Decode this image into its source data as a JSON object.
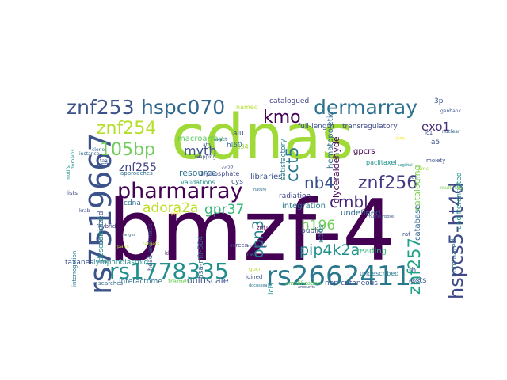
{
  "words": [
    {
      "text": "bmzf-4",
      "color": "#440154"
    },
    {
      "text": "cdnas",
      "color": "#a0da39"
    },
    {
      "text": "rs7519667",
      "color": "#3b528b"
    },
    {
      "text": "rs2662411",
      "color": "#2a788e"
    },
    {
      "text": "rs1778335",
      "color": "#21908d"
    },
    {
      "text": "pharmarray",
      "color": "#440154"
    },
    {
      "text": "dermarray",
      "color": "#2c728e"
    },
    {
      "text": "znf253",
      "color": "#3b528b"
    },
    {
      "text": "hspc070",
      "color": "#31688e"
    },
    {
      "text": "znf254",
      "color": "#b5de2b"
    },
    {
      "text": "105bp",
      "color": "#6ece58"
    },
    {
      "text": "znf256",
      "color": "#443a83"
    },
    {
      "text": "hspcs5-ht4d",
      "color": "#3e4989"
    },
    {
      "text": "znf257",
      "color": "#1fa188"
    },
    {
      "text": "adora2a",
      "color": "#bddf26"
    },
    {
      "text": "gpr37",
      "color": "#35b779"
    },
    {
      "text": "opn3",
      "color": "#26828e"
    },
    {
      "text": "pip4k2a",
      "color": "#21918c"
    },
    {
      "text": "kmo",
      "color": "#440154"
    },
    {
      "text": "cct5",
      "color": "#2a788e"
    },
    {
      "text": "nb4",
      "color": "#3b528b"
    },
    {
      "text": "cmbl",
      "color": "#482878"
    },
    {
      "text": "h196",
      "color": "#6ece58"
    },
    {
      "text": "myth",
      "color": "#3b528b"
    },
    {
      "text": "znf255",
      "color": "#414487"
    },
    {
      "text": "exo1",
      "color": "#472c7a"
    },
    {
      "text": "resource",
      "color": "#2c728e"
    },
    {
      "text": "macroarray",
      "color": "#5ec962"
    },
    {
      "text": "catalogued",
      "color": "#414487"
    },
    {
      "text": "transregulatory",
      "color": "#3e4989"
    },
    {
      "text": "full-length",
      "color": "#3b528b"
    },
    {
      "text": "glyceraldehyde",
      "color": "#440154"
    },
    {
      "text": "hematopoietic",
      "color": "#31688e"
    },
    {
      "text": "satisfactory",
      "color": "#26828e"
    },
    {
      "text": "libraries",
      "color": "#3b528b"
    },
    {
      "text": "radiation",
      "color": "#414487"
    },
    {
      "text": "integration",
      "color": "#2a788e"
    },
    {
      "text": "undefined",
      "color": "#31688e"
    },
    {
      "text": "cataloging",
      "color": "#7ad151"
    },
    {
      "text": "catabase",
      "color": "#31688e"
    },
    {
      "text": "gpcrs",
      "color": "#440154"
    },
    {
      "text": "multiscale",
      "color": "#3b528b"
    },
    {
      "text": "interactome",
      "color": "#2c728e"
    },
    {
      "text": "frames",
      "color": "#6ece58"
    },
    {
      "text": "non-cutaneous",
      "color": "#3b528b"
    },
    {
      "text": "ests",
      "color": "#31688e"
    },
    {
      "text": "reading",
      "color": "#35b779"
    },
    {
      "text": "public",
      "color": "#3e4989"
    },
    {
      "text": "ic50s",
      "color": "#2a788e"
    },
    {
      "text": "amplification",
      "color": "#5ec962"
    },
    {
      "text": "joined",
      "color": "#3b528b"
    },
    {
      "text": "screen",
      "color": "#414487"
    },
    {
      "text": "hsa-mir-584",
      "color": "#31688e"
    },
    {
      "text": "cys",
      "color": "#3b528b"
    },
    {
      "text": "znf191",
      "color": "#440154"
    },
    {
      "text": "hl60",
      "color": "#31688e"
    },
    {
      "text": "alu",
      "color": "#3b528b"
    },
    {
      "text": "named",
      "color": "#b5de2b"
    },
    {
      "text": "cdna",
      "color": "#2c728e"
    },
    {
      "text": "cd34",
      "color": "#a0da39"
    },
    {
      "text": "paclitaxel",
      "color": "#21918c"
    },
    {
      "text": "undescribed",
      "color": "#2a788e"
    },
    {
      "text": "nominated",
      "color": "#31688e"
    },
    {
      "text": "undifferentiated",
      "color": "#21918c"
    },
    {
      "text": "deionized",
      "color": "#3b528b"
    },
    {
      "text": "orfs",
      "color": "#3b528b"
    },
    {
      "text": "taxanes",
      "color": "#3b528b"
    },
    {
      "text": "lymphoblastoid",
      "color": "#21918c"
    },
    {
      "text": "interrogation",
      "color": "#2a788e"
    },
    {
      "text": "lists",
      "color": "#3e4989"
    },
    {
      "text": "searches",
      "color": "#31688e"
    },
    {
      "text": "desensitized",
      "color": "#21918c"
    },
    {
      "text": "head-and-neck",
      "color": "#3b528b"
    },
    {
      "text": "hybrid",
      "color": "#414487"
    },
    {
      "text": "gpcr",
      "color": "#b5de2b"
    },
    {
      "text": "raf",
      "color": "#3b528b"
    },
    {
      "text": "icls",
      "color": "#21918c"
    },
    {
      "text": "rh",
      "color": "#3b528b"
    },
    {
      "text": "3p",
      "color": "#3b528b"
    },
    {
      "text": "genbank",
      "color": "#3b528b"
    },
    {
      "text": "approaches",
      "color": "#2c728e"
    },
    {
      "text": "validations",
      "color": "#21918c"
    },
    {
      "text": "3-phosphate",
      "color": "#3e4989"
    },
    {
      "text": "mapping",
      "color": "#3b528b"
    },
    {
      "text": "multi-ring",
      "color": "#7ad151"
    },
    {
      "text": "a5",
      "color": "#3b528b"
    },
    {
      "text": "moiety",
      "color": "#3b528b"
    },
    {
      "text": "nuclear",
      "color": "#31688e"
    },
    {
      "text": "ic1",
      "color": "#3b528b"
    },
    {
      "text": "kb",
      "color": "#440154"
    },
    {
      "text": "krab",
      "color": "#3b528b"
    },
    {
      "text": "clone",
      "color": "#31688e"
    },
    {
      "text": "pairs",
      "color": "#b5de2b"
    },
    {
      "text": "prey",
      "color": "#fde725"
    },
    {
      "text": "nature",
      "color": "#2c728e"
    },
    {
      "text": "riv-2",
      "color": "#3b528b"
    },
    {
      "text": "race",
      "color": "#2a788e"
    },
    {
      "text": "annotation",
      "color": "#414487"
    },
    {
      "text": "taq",
      "color": "#3b528b"
    },
    {
      "text": "instance",
      "color": "#31688e"
    },
    {
      "text": "motifs",
      "color": "#21918c"
    },
    {
      "text": "domains",
      "color": "#21918c"
    },
    {
      "text": "targets",
      "color": "#b5de2b"
    },
    {
      "text": "sagittal",
      "color": "#21918c"
    },
    {
      "text": "cd27",
      "color": "#3b528b"
    },
    {
      "text": "atg",
      "color": "#3b528b"
    },
    {
      "text": "exact",
      "color": "#31688e"
    },
    {
      "text": "pmc",
      "color": "#a0da39"
    },
    {
      "text": "jpeg",
      "color": "#fde725"
    },
    {
      "text": "pub",
      "color": "#3b528b"
    },
    {
      "text": "signal",
      "color": "#2a788e"
    },
    {
      "text": "ranges",
      "color": "#31688e"
    },
    {
      "text": "amounts",
      "color": "#3b528b"
    },
    {
      "text": "multipurpose",
      "color": "#3b528b"
    },
    {
      "text": "docusseal",
      "color": "#2a788e"
    }
  ]
}
